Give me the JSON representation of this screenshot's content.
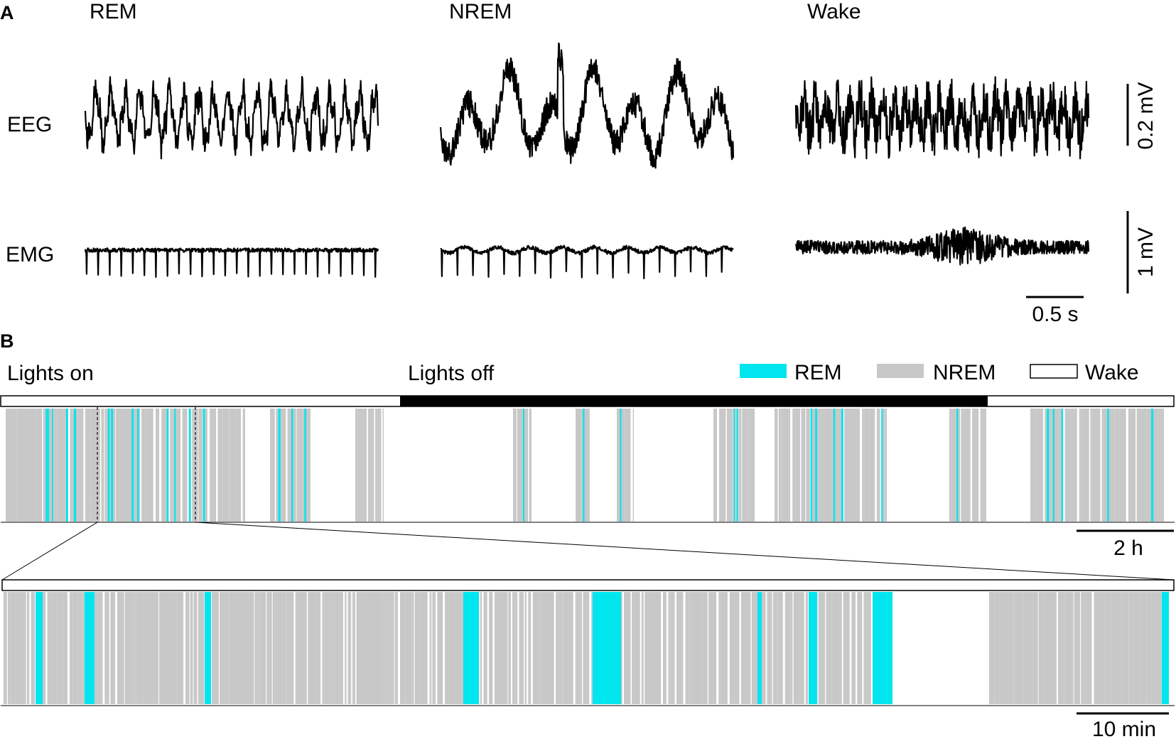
{
  "panel_a": {
    "label": "A",
    "state_titles": [
      "REM",
      "NREM",
      "Wake"
    ],
    "row_labels": {
      "eeg": "EEG",
      "emg": "EMG"
    },
    "scale_bars": {
      "eeg": "0.2 mV",
      "emg": "1 mV",
      "time": "0.5 s"
    }
  },
  "panel_b": {
    "label": "B",
    "lights_on": "Lights on",
    "lights_off": "Lights off",
    "legend": [
      {
        "label": "REM",
        "color": "#00e5ee"
      },
      {
        "label": "NREM",
        "color": "#c8c8c8"
      },
      {
        "label": "Wake",
        "color": "#ffffff"
      }
    ],
    "scale_24h": "2 h",
    "scale_zoom": "10 min"
  },
  "colors": {
    "rem": "#00e5ee",
    "nrem": "#c8c8c8",
    "wake": "#ffffff",
    "trace": "#000000"
  }
}
